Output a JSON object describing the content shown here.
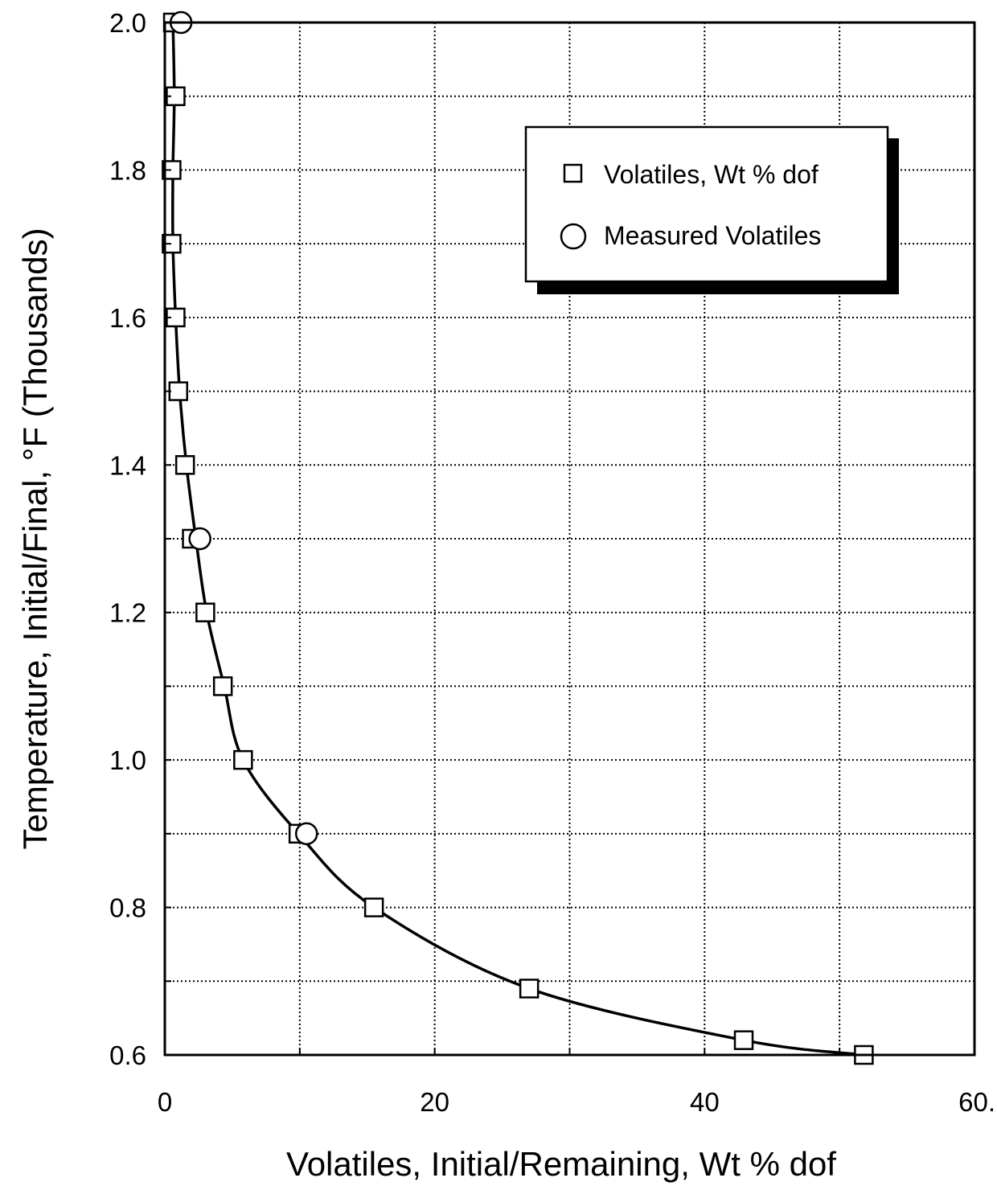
{
  "chart_data": {
    "type": "scatter",
    "title": "",
    "xlabel": "Volatiles, Initial/Remaining, Wt % dof",
    "ylabel": "Temperature, Initial/Final, °F (Thousands)",
    "xlim": [
      0,
      60
    ],
    "ylim": [
      0.6,
      2.0
    ],
    "x_ticks": [
      0,
      10,
      20,
      30,
      40,
      50,
      60
    ],
    "x_tick_labels": [
      "0",
      "",
      "20",
      "",
      "40",
      "",
      "60."
    ],
    "y_ticks": [
      0.6,
      0.7,
      0.8,
      0.9,
      1.0,
      1.1,
      1.2,
      1.3,
      1.4,
      1.5,
      1.6,
      1.7,
      1.8,
      1.9,
      2.0
    ],
    "y_tick_labels": [
      "0.6",
      "",
      "0.8",
      "",
      "1.0",
      "",
      "1.2",
      "",
      "1.4",
      "",
      "1.6",
      "",
      "1.8",
      "",
      "2.0"
    ],
    "grid": true,
    "legend_position": "top-right",
    "series": [
      {
        "name": "Volatiles, Wt % dof",
        "marker": "square",
        "points": [
          [
            0.6,
            2.0
          ],
          [
            0.8,
            1.9
          ],
          [
            0.5,
            1.8
          ],
          [
            0.5,
            1.7
          ],
          [
            0.8,
            1.6
          ],
          [
            1.0,
            1.5
          ],
          [
            1.5,
            1.4
          ],
          [
            2.0,
            1.3
          ],
          [
            3.0,
            1.2
          ],
          [
            4.3,
            1.1
          ],
          [
            5.8,
            1.0
          ],
          [
            9.9,
            0.9
          ],
          [
            15.5,
            0.8
          ],
          [
            27.0,
            0.69
          ],
          [
            42.9,
            0.62
          ],
          [
            51.8,
            0.6
          ]
        ]
      },
      {
        "name": "Measured Volatiles",
        "marker": "circle",
        "points": [
          [
            1.2,
            2.0
          ],
          [
            2.6,
            1.3
          ],
          [
            10.5,
            0.9
          ]
        ]
      }
    ],
    "fit_curve": [
      [
        0.6,
        2.0
      ],
      [
        0.7,
        1.9
      ],
      [
        0.6,
        1.8
      ],
      [
        0.6,
        1.7
      ],
      [
        0.8,
        1.6
      ],
      [
        1.1,
        1.5
      ],
      [
        1.6,
        1.4
      ],
      [
        2.3,
        1.3
      ],
      [
        3.1,
        1.2
      ],
      [
        4.4,
        1.1
      ],
      [
        5.8,
        1.0
      ],
      [
        9.9,
        0.9
      ],
      [
        15.5,
        0.8
      ],
      [
        27.0,
        0.69
      ],
      [
        42.9,
        0.62
      ],
      [
        51.8,
        0.6
      ]
    ]
  }
}
